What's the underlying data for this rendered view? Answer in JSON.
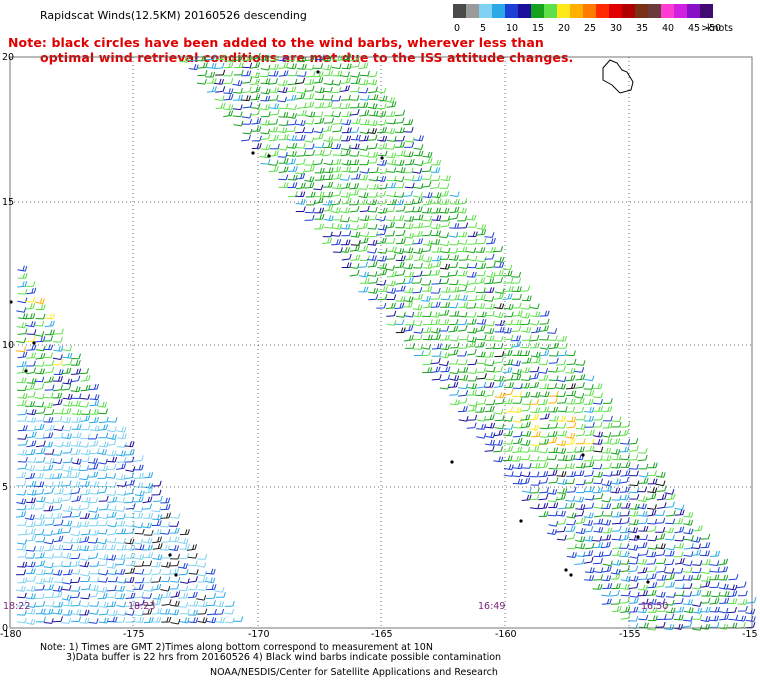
{
  "title": "Rapidscat Winds(12.5KM) 20160526 descending",
  "note": {
    "line1": "Note: black circles have been added to the wind barbs, wherever less than",
    "line2": "optimal wind retrieval conditions are met due to the ISS attitude changes."
  },
  "legend": {
    "unit": "knots",
    "bins": [
      {
        "label": "0",
        "color": "#4a4a4a"
      },
      {
        "label": "",
        "color": "#9a9a9a"
      },
      {
        "label": "5",
        "color": "#7fd2f2"
      },
      {
        "label": "",
        "color": "#2aa9e6"
      },
      {
        "label": "10",
        "color": "#1d3fd6"
      },
      {
        "label": "",
        "color": "#1c0f9c"
      },
      {
        "label": "15",
        "color": "#16a21c"
      },
      {
        "label": "",
        "color": "#5ee04a"
      },
      {
        "label": "20",
        "color": "#ffe81a"
      },
      {
        "label": "",
        "color": "#ffb000"
      },
      {
        "label": "25",
        "color": "#ff7a00"
      },
      {
        "label": "",
        "color": "#ff2a00"
      },
      {
        "label": "30",
        "color": "#e00000"
      },
      {
        "label": "",
        "color": "#b00000"
      },
      {
        "label": "35",
        "color": "#7a3014"
      },
      {
        "label": "",
        "color": "#6b3a3a"
      },
      {
        "label": "40",
        "color": "#ff3cd2"
      },
      {
        "label": "",
        "color": "#d020e0"
      },
      {
        "label": "45",
        "color": "#8a10c8"
      },
      {
        "label": ">50",
        "color": "#400a70"
      }
    ]
  },
  "axes": {
    "x_ticks": [
      "-180",
      "-175",
      "-170",
      "-165",
      "-160",
      "-155",
      "-15"
    ],
    "y_ticks": [
      "20",
      "15",
      "10",
      "5",
      "0"
    ]
  },
  "swath_times": [
    "18:22",
    "18:23",
    "16:49",
    "16:50"
  ],
  "footer": {
    "line1": "Note: 1) Times are GMT 2)Times along bottom correspond to measurement at 10N",
    "line2": "3)Data buffer is 22 hrs from 20160526 4) Black wind barbs indicate possible contamination",
    "credit": "NOAA/NESDIS/Center for Satellite Applications and Research"
  }
}
